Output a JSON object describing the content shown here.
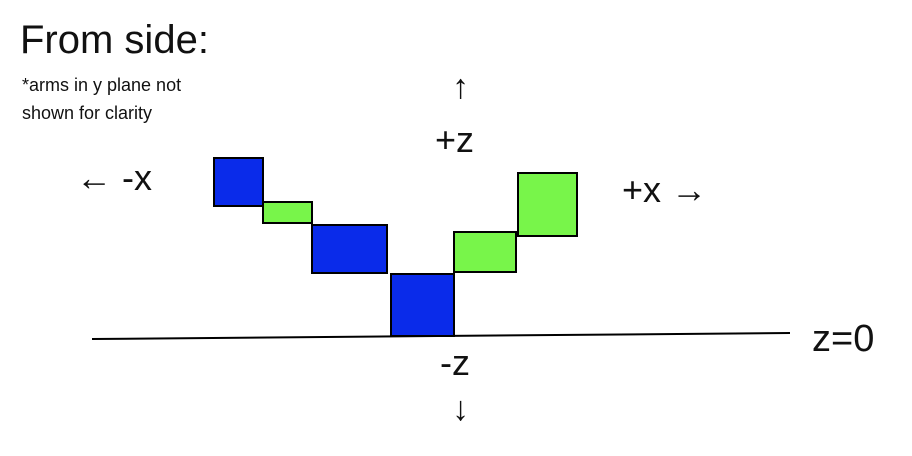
{
  "title": "From side:",
  "note": {
    "line1": "*arms in y plane not",
    "line2": "shown for clarity"
  },
  "axes": {
    "plus_z_arrow": "↑",
    "plus_z_label": "+z",
    "minus_x_arrow": "←",
    "minus_x_label": "-x",
    "plus_x_label": "+x",
    "plus_x_arrow": "→",
    "minus_z_label": "-z",
    "minus_z_arrow": "↓",
    "ground_label": "z=0"
  },
  "colors": {
    "blue_block": "#0a2bea",
    "green_block": "#78f54a",
    "line": "#000000"
  }
}
